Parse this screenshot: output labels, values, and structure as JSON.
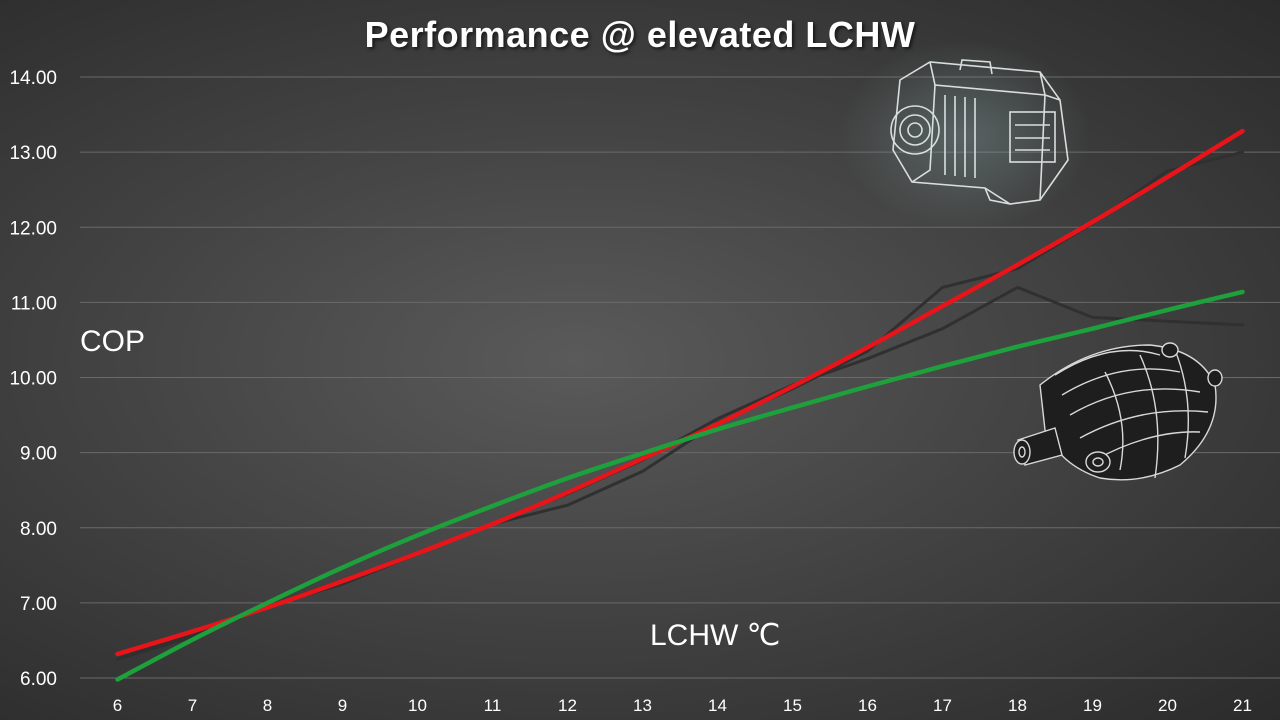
{
  "chart_data": {
    "type": "line",
    "title": "Performance @ elevated LCHW",
    "xlabel": "LCHW ℃",
    "ylabel": "COP",
    "x": [
      6,
      7,
      8,
      9,
      10,
      11,
      12,
      13,
      14,
      15,
      16,
      17,
      18,
      19,
      20,
      21
    ],
    "ylim": [
      6.0,
      14.0
    ],
    "y_ticks": [
      "6.00",
      "7.00",
      "8.00",
      "9.00",
      "10.00",
      "11.00",
      "12.00",
      "13.00",
      "14.00"
    ],
    "x_ticks": [
      "6",
      "7",
      "8",
      "9",
      "10",
      "11",
      "12",
      "13",
      "14",
      "15",
      "16",
      "17",
      "18",
      "19",
      "20",
      "21"
    ],
    "grid": true,
    "series": [
      {
        "values": [
          6.25,
          6.6,
          6.95,
          7.3,
          7.65,
          8.05,
          8.3,
          8.75,
          9.4,
          9.85,
          10.35,
          11.2,
          11.45,
          12.05,
          12.75,
          13.0
        ],
        "color": "#303030"
      },
      {
        "values": [
          6.25,
          6.55,
          6.95,
          7.25,
          7.65,
          8.05,
          8.45,
          8.9,
          9.45,
          9.9,
          10.25,
          10.65,
          11.2,
          10.8,
          10.75,
          10.7
        ],
        "color": "#303030"
      },
      {
        "values": [
          6.32,
          6.62,
          6.94,
          7.29,
          7.66,
          8.05,
          8.47,
          8.92,
          9.38,
          9.88,
          10.4,
          10.95,
          11.5,
          12.07,
          12.67,
          13.28
        ],
        "color": "#e8141a",
        "style": "trendline"
      },
      {
        "values": [
          5.98,
          6.51,
          7.0,
          7.47,
          7.9,
          8.29,
          8.66,
          8.99,
          9.31,
          9.6,
          9.88,
          10.15,
          10.41,
          10.65,
          10.9,
          11.14
        ],
        "color": "#1ea03c",
        "style": "trendline"
      }
    ]
  },
  "colors": {
    "background": "#444444",
    "grid": "#6a6a6a",
    "text": "#ffffff"
  },
  "decorations": {
    "motor_image": "compressor-motor-illustration",
    "rotor_image": "screw-rotor-illustration"
  }
}
